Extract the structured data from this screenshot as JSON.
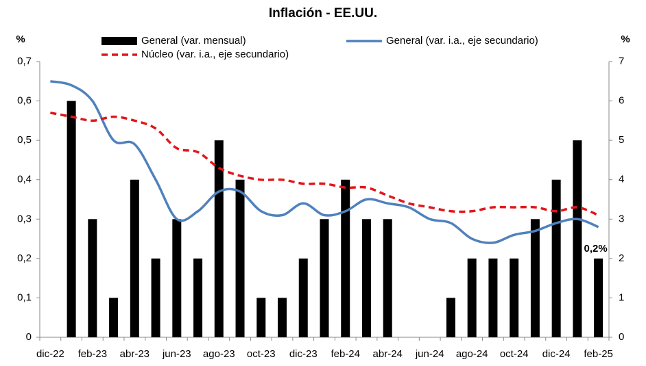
{
  "chart_data": {
    "type": "bar_line",
    "title": "Inflación - EE.UU.",
    "y_label": "%",
    "y2_label": "%",
    "categories": [
      "dic-22",
      null,
      "feb-23",
      null,
      "abr-23",
      null,
      "jun-23",
      null,
      "ago-23",
      null,
      "oct-23",
      null,
      "dic-23",
      null,
      "feb-24",
      null,
      "abr-24",
      null,
      "jun-24",
      null,
      "ago-24",
      null,
      "oct-24",
      null,
      "dic-24",
      null,
      "feb-25"
    ],
    "series": [
      {
        "name": "General (var. mensual)",
        "type": "bar",
        "color": "#000000",
        "values": [
          0,
          0.6,
          0.3,
          0.1,
          0.4,
          0.2,
          0.3,
          0.2,
          0.5,
          0.4,
          0.1,
          0.1,
          0.2,
          0.3,
          0.4,
          0.3,
          0.3,
          0,
          0,
          0.1,
          0.2,
          0.2,
          0.2,
          0.3,
          0.4,
          0.5,
          0.2
        ],
        "value_labels": [
          null,
          null,
          null,
          null,
          null,
          null,
          null,
          null,
          null,
          null,
          null,
          null,
          null,
          null,
          null,
          null,
          null,
          null,
          null,
          null,
          null,
          null,
          null,
          null,
          null,
          null,
          "0,2%"
        ]
      },
      {
        "name": "General (var. i.a., eje secundario)",
        "type": "line",
        "axis": "y2",
        "color": "#4f81bd",
        "dash": false,
        "values": [
          6.5,
          6.4,
          6.0,
          5.0,
          4.9,
          4.0,
          3.0,
          3.2,
          3.7,
          3.7,
          3.2,
          3.1,
          3.4,
          3.1,
          3.2,
          3.5,
          3.4,
          3.3,
          3.0,
          2.9,
          2.5,
          2.4,
          2.6,
          2.7,
          2.9,
          3.0,
          2.8
        ]
      },
      {
        "name": "Núcleo (var. i.a., eje secundario)",
        "type": "line",
        "axis": "y2",
        "color": "#e3151a",
        "dash": true,
        "values": [
          5.7,
          5.6,
          5.5,
          5.6,
          5.5,
          5.3,
          4.8,
          4.7,
          4.3,
          4.1,
          4.0,
          4.0,
          3.9,
          3.9,
          3.8,
          3.8,
          3.6,
          3.4,
          3.3,
          3.2,
          3.2,
          3.3,
          3.3,
          3.3,
          3.2,
          3.3,
          3.1
        ]
      }
    ],
    "ylim": [
      0,
      0.7
    ],
    "yticks": [
      0,
      {
        "value": 0.1,
        "label": "0,1"
      },
      {
        "value": 0.2,
        "label": "0,2"
      },
      {
        "value": 0.3,
        "label": "0,3"
      },
      {
        "value": 0.4,
        "label": "0,4"
      },
      {
        "value": 0.5,
        "label": "0,5"
      },
      {
        "value": 0.6,
        "label": "0,6"
      },
      {
        "value": 0.7,
        "label": "0,7"
      }
    ],
    "y2lim": [
      0,
      7
    ],
    "y2ticks": [
      0,
      1,
      2,
      3,
      4,
      5,
      6,
      7
    ],
    "grid": false
  }
}
